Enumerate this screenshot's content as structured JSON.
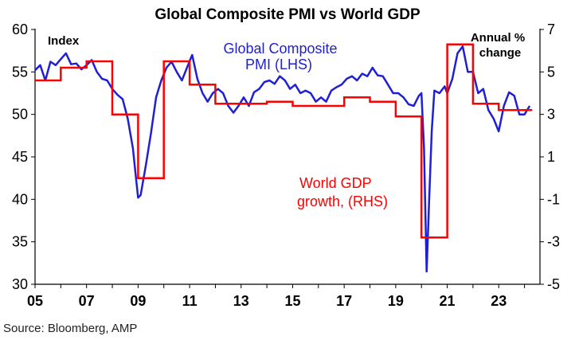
{
  "chart_data": {
    "type": "line",
    "title": "Global Composite PMI vs World GDP",
    "source": "Source: Bloomberg, AMP",
    "left_axis_unit": "Index",
    "right_axis_unit": [
      "Annual %",
      "change"
    ],
    "xlim": [
      2005,
      2024.6
    ],
    "ylim_left": [
      30,
      60
    ],
    "ylim_right": [
      -5,
      7
    ],
    "x_ticks": [
      2005,
      2007,
      2009,
      2011,
      2013,
      2015,
      2017,
      2019,
      2021,
      2023
    ],
    "x_tick_labels": [
      "05",
      "07",
      "09",
      "11",
      "13",
      "15",
      "17",
      "19",
      "21",
      "23"
    ],
    "y_left_ticks": [
      30,
      35,
      40,
      45,
      50,
      55,
      60
    ],
    "y_right_ticks": [
      -5,
      -3,
      -1,
      1,
      3,
      5,
      7
    ],
    "grid": false,
    "colors": {
      "pmi": "#1f1fd6",
      "gdp": "#ff0000"
    },
    "series": [
      {
        "name": [
          "Global Composite",
          "PMI (LHS)"
        ],
        "axis": "left",
        "x": [
          2005.0,
          2005.2,
          2005.4,
          2005.6,
          2005.8,
          2006.0,
          2006.2,
          2006.4,
          2006.6,
          2006.8,
          2007.0,
          2007.2,
          2007.4,
          2007.6,
          2007.8,
          2008.0,
          2008.2,
          2008.4,
          2008.6,
          2008.8,
          2008.9,
          2009.0,
          2009.1,
          2009.3,
          2009.5,
          2009.7,
          2009.9,
          2010.1,
          2010.3,
          2010.5,
          2010.7,
          2010.9,
          2011.1,
          2011.3,
          2011.5,
          2011.7,
          2011.9,
          2012.1,
          2012.3,
          2012.5,
          2012.7,
          2012.9,
          2013.1,
          2013.3,
          2013.5,
          2013.7,
          2013.9,
          2014.1,
          2014.3,
          2014.5,
          2014.7,
          2014.9,
          2015.1,
          2015.3,
          2015.5,
          2015.7,
          2015.9,
          2016.1,
          2016.3,
          2016.5,
          2016.7,
          2016.9,
          2017.1,
          2017.3,
          2017.5,
          2017.7,
          2017.9,
          2018.1,
          2018.3,
          2018.5,
          2018.7,
          2018.9,
          2019.1,
          2019.3,
          2019.5,
          2019.7,
          2019.9,
          2020.0,
          2020.1,
          2020.2,
          2020.3,
          2020.4,
          2020.5,
          2020.7,
          2020.9,
          2021.0,
          2021.2,
          2021.4,
          2021.6,
          2021.8,
          2022.0,
          2022.2,
          2022.4,
          2022.6,
          2022.8,
          2023.0,
          2023.2,
          2023.4,
          2023.6,
          2023.8,
          2024.0,
          2024.2
        ],
        "values": [
          55.2,
          55.8,
          54.0,
          56.2,
          55.8,
          56.5,
          57.2,
          55.9,
          56.0,
          55.3,
          55.8,
          56.4,
          55.0,
          54.2,
          54.0,
          53.0,
          52.3,
          51.8,
          49.5,
          46.0,
          43.0,
          40.2,
          40.5,
          44.0,
          47.8,
          52.0,
          54.0,
          55.5,
          56.2,
          55.0,
          54.0,
          55.5,
          57.0,
          54.2,
          52.5,
          51.5,
          52.5,
          53.0,
          52.5,
          51.0,
          50.2,
          51.0,
          52.0,
          51.0,
          52.6,
          53.0,
          53.8,
          54.0,
          53.6,
          54.5,
          54.0,
          53.0,
          53.5,
          52.5,
          52.8,
          52.5,
          51.5,
          52.0,
          51.5,
          52.8,
          53.2,
          53.5,
          54.2,
          54.5,
          54.0,
          54.8,
          54.5,
          55.5,
          54.6,
          54.5,
          53.5,
          52.5,
          52.5,
          52.0,
          51.2,
          51.0,
          52.2,
          52.5,
          46.0,
          31.5,
          40.0,
          48.0,
          52.8,
          52.5,
          53.3,
          52.5,
          54.2,
          57.2,
          58.0,
          55.0,
          55.0,
          52.5,
          53.0,
          50.5,
          49.5,
          48.0,
          51.0,
          52.6,
          52.2,
          50.0,
          50.0,
          51.0
        ]
      },
      {
        "name": [
          "World GDP",
          "growth, (RHS)"
        ],
        "axis": "right",
        "x": [
          2005.0,
          2006.0,
          2006.0,
          2007.0,
          2007.0,
          2008.0,
          2008.0,
          2009.0,
          2009.0,
          2010.0,
          2010.0,
          2011.0,
          2011.0,
          2012.0,
          2012.0,
          2013.0,
          2013.0,
          2014.0,
          2014.0,
          2015.0,
          2015.0,
          2016.0,
          2016.0,
          2017.0,
          2017.0,
          2018.0,
          2018.0,
          2019.0,
          2019.0,
          2020.0,
          2020.0,
          2021.0,
          2021.0,
          2022.0,
          2022.0,
          2023.0,
          2023.0,
          2024.0,
          2024.0,
          2024.3
        ],
        "values": [
          4.6,
          4.6,
          5.2,
          5.2,
          5.5,
          5.5,
          3.0,
          3.0,
          0.0,
          0.0,
          5.5,
          5.5,
          4.4,
          4.4,
          3.5,
          3.5,
          3.5,
          3.5,
          3.6,
          3.6,
          3.4,
          3.4,
          3.4,
          3.4,
          3.8,
          3.8,
          3.6,
          3.6,
          2.9,
          2.9,
          -2.8,
          -2.8,
          6.3,
          6.3,
          3.5,
          3.5,
          3.2,
          3.2,
          3.2,
          3.2
        ]
      }
    ]
  }
}
